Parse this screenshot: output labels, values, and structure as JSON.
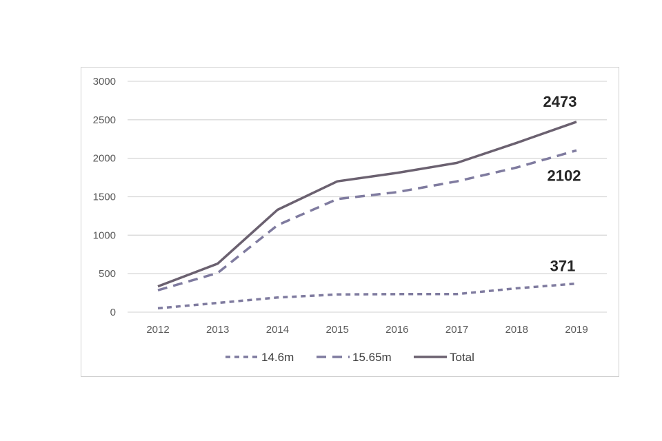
{
  "chart_data": {
    "type": "line",
    "title": "",
    "xlabel": "",
    "ylabel": "",
    "categories": [
      "2012",
      "2013",
      "2014",
      "2015",
      "2016",
      "2017",
      "2018",
      "2019"
    ],
    "ylim": [
      0,
      3000
    ],
    "yticks": [
      0,
      500,
      1000,
      1500,
      2000,
      2500,
      3000
    ],
    "grid": true,
    "legend_position": "bottom",
    "series": [
      {
        "name": "14.6m",
        "style": "short-dash",
        "color": "#7f7b9f",
        "values": [
          50,
          120,
          190,
          230,
          235,
          235,
          310,
          371
        ]
      },
      {
        "name": "15.65m",
        "style": "long-dash",
        "color": "#7f7b9f",
        "values": [
          285,
          510,
          1130,
          1470,
          1560,
          1700,
          1880,
          2102
        ]
      },
      {
        "name": "Total",
        "style": "solid",
        "color": "#6b6170",
        "values": [
          335,
          630,
          1330,
          1700,
          1810,
          1940,
          2200,
          2473
        ]
      }
    ],
    "annotations": [
      {
        "series": "Total",
        "category": "2019",
        "text": "2473"
      },
      {
        "series": "15.65m",
        "category": "2019",
        "text": "2102"
      },
      {
        "series": "14.6m",
        "category": "2019",
        "text": "371"
      }
    ]
  }
}
